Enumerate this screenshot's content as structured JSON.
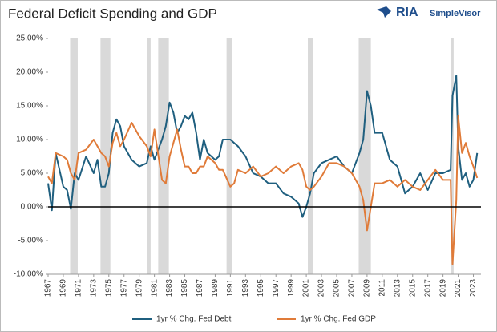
{
  "chart_data": {
    "type": "line",
    "title": "Federal Deficit Spending and GDP",
    "logo": {
      "mark": "RIA",
      "name": "SimpleVisor"
    },
    "x": [
      1967,
      1967.5,
      1968,
      1969,
      1969.5,
      1970,
      1970.5,
      1971,
      1972,
      1973,
      1973.5,
      1974,
      1974.5,
      1975,
      1975.5,
      1976,
      1976.5,
      1977,
      1978,
      1979,
      1980,
      1980.5,
      1981,
      1982,
      1982.5,
      1983,
      1983.5,
      1984,
      1984.5,
      1985,
      1985.5,
      1986,
      1986.5,
      1987,
      1987.5,
      1988,
      1989,
      1989.5,
      1990,
      1991,
      1991.5,
      1992,
      1993,
      1994,
      1995,
      1996,
      1997,
      1998,
      1999,
      2000,
      2000.5,
      2001,
      2001.5,
      2002,
      2003,
      2004,
      2005,
      2006,
      2007,
      2008,
      2008.5,
      2009,
      2009.5,
      2010,
      2011,
      2012,
      2013,
      2014,
      2015,
      2016,
      2017,
      2018,
      2019,
      2020,
      2020.25,
      2020.75,
      2021,
      2021.5,
      2022,
      2022.5,
      2023,
      2023.5
    ],
    "series": [
      {
        "name": "1yr % Chg. Fed Debt",
        "color": "#1f5f7f",
        "values": [
          3.5,
          -0.5,
          8,
          3,
          2.5,
          -0.3,
          5,
          4,
          7.5,
          5,
          7,
          3,
          3,
          5,
          11,
          13,
          12,
          9,
          7,
          6,
          6.5,
          9,
          7,
          10,
          12,
          15.5,
          14,
          11,
          12,
          13.5,
          13,
          14,
          11,
          7,
          10,
          8,
          7,
          7.5,
          10,
          10,
          9.5,
          9,
          7.5,
          5,
          4.5,
          3.5,
          3.5,
          2,
          1.5,
          0.5,
          -1.5,
          0,
          2,
          5,
          6.5,
          7,
          7.5,
          6,
          5,
          8,
          10,
          17.2,
          15,
          11,
          11,
          7,
          6,
          2,
          3,
          5,
          2.5,
          5,
          5,
          5.5,
          16.5,
          19.5,
          9,
          4,
          5,
          3,
          4,
          8
        ]
      },
      {
        "name": "1yr % Chg. Fed GDP",
        "color": "#e07b39",
        "values": [
          4.5,
          3.5,
          8,
          7.5,
          7,
          5,
          4,
          8,
          8.5,
          10,
          9,
          8,
          7.5,
          6,
          9.5,
          11,
          9,
          10,
          12.5,
          10.5,
          9,
          7.5,
          11.5,
          4,
          3.5,
          7.5,
          9.5,
          11.5,
          8.5,
          6,
          6,
          5,
          5,
          6,
          6,
          7.5,
          6.5,
          5.5,
          5.5,
          3,
          3.5,
          5.5,
          5,
          6,
          4.5,
          5,
          6,
          5,
          6,
          6.5,
          5.5,
          3,
          2.5,
          3,
          4.5,
          6.5,
          6.5,
          6,
          5,
          3,
          1,
          -3.5,
          0,
          3.5,
          3.5,
          4,
          3,
          4,
          3,
          2.5,
          4,
          5.5,
          4,
          4,
          -8.5,
          1,
          13.5,
          8,
          9.5,
          7.5,
          6,
          4.3
        ]
      }
    ],
    "shaded_periods": [
      [
        1969.9,
        1970.9
      ],
      [
        1973.9,
        1975.2
      ],
      [
        1980.0,
        1980.5
      ],
      [
        1981.5,
        1982.9
      ],
      [
        1990.5,
        1991.2
      ],
      [
        2001.2,
        2001.9
      ],
      [
        2007.9,
        2009.5
      ],
      [
        2020.1,
        2020.4
      ]
    ],
    "shade_color": "#d9d9d9",
    "xlim": [
      1967,
      2024
    ],
    "xticks": [
      1967,
      1969,
      1971,
      1973,
      1975,
      1977,
      1979,
      1981,
      1983,
      1985,
      1987,
      1989,
      1991,
      1993,
      1995,
      1997,
      1999,
      2001,
      2003,
      2005,
      2007,
      2009,
      2011,
      2013,
      2015,
      2017,
      2019,
      2021,
      2023
    ],
    "ylim": [
      -10,
      25
    ],
    "yticks": [
      {
        "value": -10,
        "label": "-10.00%"
      },
      {
        "value": -5,
        "label": "-5.00%"
      },
      {
        "value": 0,
        "label": "0.00%"
      },
      {
        "value": 5,
        "label": "5.00%"
      },
      {
        "value": 10,
        "label": "10.00%"
      },
      {
        "value": 15,
        "label": "15.00%"
      },
      {
        "value": 20,
        "label": "20.00%"
      },
      {
        "value": 25,
        "label": "25.00%"
      }
    ],
    "zero_line": true,
    "legend": "bottom"
  }
}
